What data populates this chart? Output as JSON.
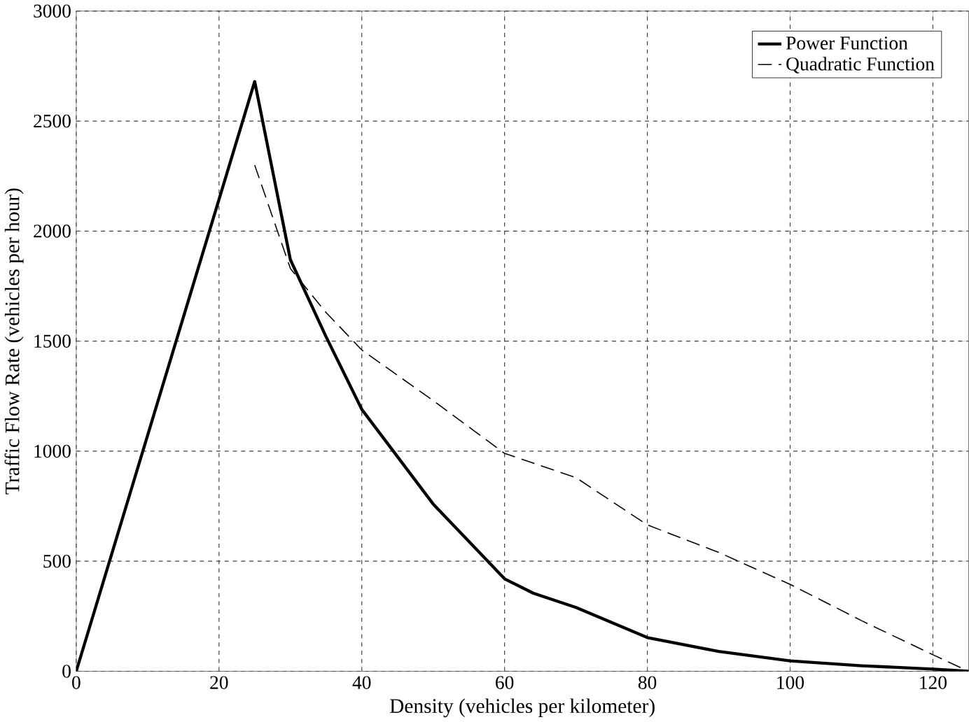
{
  "chart_data": {
    "type": "line",
    "xlabel": "Density (vehicles per kilometer)",
    "ylabel": "Traffic Flow Rate (vehicles per hour)",
    "xlim": [
      0,
      125
    ],
    "ylim": [
      0,
      3000
    ],
    "xticks": [
      0,
      20,
      40,
      60,
      80,
      100,
      120
    ],
    "yticks": [
      0,
      500,
      1000,
      1500,
      2000,
      2500,
      3000
    ],
    "grid": true,
    "legend": "top right",
    "series": [
      {
        "name": "Power Function",
        "color": "#000000",
        "line_style": "solid",
        "x": [
          0,
          25,
          30,
          35,
          40,
          50,
          60,
          64,
          70,
          80,
          90,
          100,
          110,
          120,
          125
        ],
        "values": [
          0,
          2680,
          1870,
          1520,
          1190,
          760,
          420,
          355,
          290,
          153,
          90,
          47,
          25,
          10,
          0
        ]
      },
      {
        "name": "Quadratic Function",
        "color": "#000000",
        "line_style": "dashed",
        "x": [
          25,
          30,
          35,
          40,
          50,
          60,
          70,
          80,
          90,
          100,
          110,
          120,
          125
        ],
        "values": [
          2300,
          1830,
          1630,
          1460,
          1230,
          990,
          880,
          665,
          540,
          395,
          230,
          75,
          0
        ]
      }
    ]
  }
}
